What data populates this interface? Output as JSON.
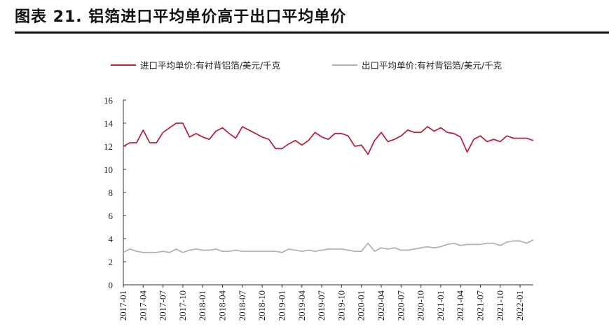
{
  "header": {
    "title": "图表 21. 铝箔进口平均单价高于出口平均单价"
  },
  "chart_data": {
    "type": "line",
    "xlabel": "",
    "ylabel": "",
    "ylim": [
      0,
      16
    ],
    "yticks": [
      0,
      2,
      4,
      6,
      8,
      10,
      12,
      14,
      16
    ],
    "grid": false,
    "legend_position": "top",
    "x": [
      "2017-01",
      "2017-02",
      "2017-03",
      "2017-04",
      "2017-05",
      "2017-06",
      "2017-07",
      "2017-08",
      "2017-09",
      "2017-10",
      "2017-11",
      "2017-12",
      "2018-01",
      "2018-02",
      "2018-03",
      "2018-04",
      "2018-05",
      "2018-06",
      "2018-07",
      "2018-08",
      "2018-09",
      "2018-10",
      "2018-11",
      "2018-12",
      "2019-01",
      "2019-02",
      "2019-03",
      "2019-04",
      "2019-05",
      "2019-06",
      "2019-07",
      "2019-08",
      "2019-09",
      "2019-10",
      "2019-11",
      "2019-12",
      "2020-01",
      "2020-02",
      "2020-03",
      "2020-04",
      "2020-05",
      "2020-06",
      "2020-07",
      "2020-08",
      "2020-09",
      "2020-10",
      "2020-11",
      "2020-12",
      "2021-01",
      "2021-02",
      "2021-03",
      "2021-04",
      "2021-05",
      "2021-06",
      "2021-07",
      "2021-08",
      "2021-09",
      "2021-10",
      "2021-11",
      "2021-12",
      "2022-01",
      "2022-02",
      "2022-03"
    ],
    "xtick_labels": [
      "2017-01",
      "2017-04",
      "2017-07",
      "2017-10",
      "2018-01",
      "2018-04",
      "2018-07",
      "2018-10",
      "2019-01",
      "2019-04",
      "2019-07",
      "2019-10",
      "2020-01",
      "2020-04",
      "2020-07",
      "2020-10",
      "2021-01",
      "2021-04",
      "2021-07",
      "2021-10",
      "2022-01"
    ],
    "series": [
      {
        "name": "进口平均单价:有衬背铝箔/美元/千克",
        "color": "#b5263f",
        "values": [
          12.0,
          12.3,
          12.3,
          13.4,
          12.3,
          12.3,
          13.2,
          13.6,
          14.0,
          14.0,
          12.8,
          13.1,
          12.8,
          12.6,
          13.3,
          13.6,
          13.1,
          12.7,
          13.7,
          13.4,
          13.1,
          12.8,
          12.6,
          11.8,
          11.8,
          12.2,
          12.5,
          12.1,
          12.5,
          13.2,
          12.8,
          12.6,
          13.1,
          13.1,
          12.9,
          12.0,
          12.1,
          11.3,
          12.5,
          13.2,
          12.4,
          12.6,
          12.9,
          13.4,
          13.2,
          13.2,
          13.7,
          13.3,
          13.6,
          13.2,
          13.1,
          12.8,
          11.5,
          12.6,
          12.9,
          12.4,
          12.6,
          12.4,
          12.9,
          12.7,
          12.7,
          12.7,
          12.5
        ]
      },
      {
        "name": "出口平均单价:有衬背铝箔/美元/千克",
        "color": "#b3b3b3",
        "values": [
          2.8,
          3.1,
          2.9,
          2.8,
          2.8,
          2.8,
          2.9,
          2.8,
          3.1,
          2.8,
          3.0,
          3.1,
          3.0,
          3.0,
          3.1,
          2.9,
          2.9,
          3.0,
          2.9,
          2.9,
          2.9,
          2.9,
          2.9,
          2.9,
          2.8,
          3.1,
          3.0,
          2.9,
          3.0,
          2.9,
          3.0,
          3.1,
          3.1,
          3.1,
          3.0,
          2.9,
          2.9,
          3.6,
          2.9,
          3.2,
          3.1,
          3.2,
          3.0,
          3.0,
          3.1,
          3.2,
          3.3,
          3.2,
          3.3,
          3.5,
          3.6,
          3.4,
          3.5,
          3.5,
          3.5,
          3.6,
          3.6,
          3.4,
          3.7,
          3.8,
          3.8,
          3.6,
          3.9
        ]
      }
    ]
  }
}
